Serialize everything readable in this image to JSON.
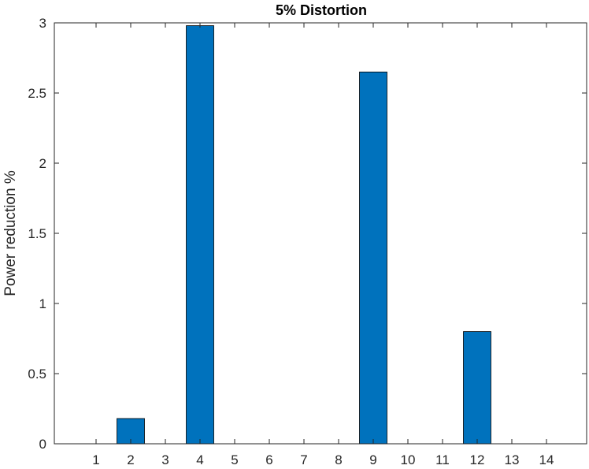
{
  "chart_data": {
    "type": "bar",
    "title": "5% Distortion",
    "xlabel": "",
    "ylabel": "Power reduction %",
    "categories": [
      "1",
      "2",
      "3",
      "4",
      "5",
      "6",
      "7",
      "8",
      "9",
      "10",
      "11",
      "12",
      "13",
      "14"
    ],
    "values": [
      0,
      0.18,
      0,
      2.98,
      0,
      0,
      0,
      0,
      2.65,
      0,
      0,
      0.8,
      0,
      0
    ],
    "ylim": [
      0,
      3
    ],
    "yticks": [
      0,
      0.5,
      1,
      1.5,
      2,
      2.5,
      3
    ],
    "ytick_labels": [
      "0",
      "0.5",
      "1",
      "1.5",
      "2",
      "2.5",
      "3"
    ],
    "grid": false,
    "bar_color": "#0072BD"
  }
}
